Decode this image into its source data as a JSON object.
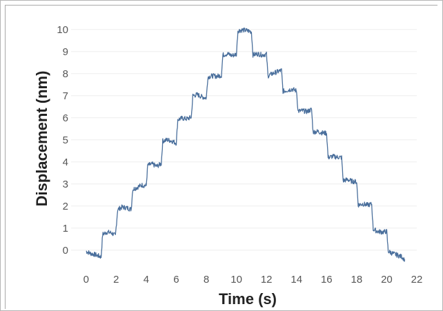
{
  "chart_data": {
    "type": "line",
    "title": "",
    "xlabel": "Time (s)",
    "ylabel": "Displacement (nm)",
    "xlim": [
      -1,
      22
    ],
    "ylim": [
      -0.6,
      10.4
    ],
    "x_ticks": [
      0,
      2,
      4,
      6,
      8,
      10,
      12,
      14,
      16,
      18,
      20,
      22
    ],
    "y_ticks": [
      0,
      1,
      2,
      3,
      4,
      5,
      6,
      7,
      8,
      9,
      10
    ],
    "grid": "horizontal",
    "legend": "none",
    "series": [
      {
        "color": "#4a6f9c",
        "points": [
          [
            0.0,
            -0.05
          ],
          [
            0.3,
            -0.15
          ],
          [
            0.6,
            -0.2
          ],
          [
            0.9,
            -0.28
          ],
          [
            1.0,
            -0.3
          ],
          [
            1.1,
            0.72
          ],
          [
            1.4,
            0.82
          ],
          [
            1.7,
            0.78
          ],
          [
            1.95,
            0.65
          ],
          [
            2.1,
            1.85
          ],
          [
            2.4,
            1.95
          ],
          [
            2.7,
            1.92
          ],
          [
            3.0,
            1.85
          ],
          [
            3.1,
            2.75
          ],
          [
            3.4,
            2.85
          ],
          [
            3.7,
            2.95
          ],
          [
            4.0,
            2.92
          ],
          [
            4.1,
            3.85
          ],
          [
            4.4,
            3.9
          ],
          [
            4.7,
            3.8
          ],
          [
            5.0,
            3.92
          ],
          [
            5.1,
            4.95
          ],
          [
            5.4,
            5.0
          ],
          [
            5.7,
            4.95
          ],
          [
            6.0,
            4.85
          ],
          [
            6.1,
            5.92
          ],
          [
            6.4,
            5.98
          ],
          [
            6.7,
            5.95
          ],
          [
            7.0,
            6.02
          ],
          [
            7.1,
            7.0
          ],
          [
            7.4,
            7.05
          ],
          [
            7.7,
            6.95
          ],
          [
            8.0,
            6.9
          ],
          [
            8.1,
            7.85
          ],
          [
            8.4,
            7.9
          ],
          [
            8.7,
            7.88
          ],
          [
            9.0,
            7.92
          ],
          [
            9.1,
            8.85
          ],
          [
            9.4,
            8.9
          ],
          [
            9.7,
            8.82
          ],
          [
            10.0,
            8.88
          ],
          [
            10.1,
            9.95
          ],
          [
            10.4,
            9.98
          ],
          [
            10.7,
            9.95
          ],
          [
            11.0,
            9.9
          ],
          [
            11.1,
            8.85
          ],
          [
            11.4,
            8.9
          ],
          [
            11.7,
            8.85
          ],
          [
            12.0,
            8.88
          ],
          [
            12.1,
            7.9
          ],
          [
            12.4,
            8.0
          ],
          [
            12.7,
            8.08
          ],
          [
            13.0,
            8.15
          ],
          [
            13.1,
            7.2
          ],
          [
            13.4,
            7.25
          ],
          [
            13.7,
            7.3
          ],
          [
            14.0,
            7.22
          ],
          [
            14.1,
            6.3
          ],
          [
            14.4,
            6.32
          ],
          [
            14.7,
            6.28
          ],
          [
            15.0,
            6.38
          ],
          [
            15.1,
            5.35
          ],
          [
            15.4,
            5.38
          ],
          [
            15.7,
            5.32
          ],
          [
            16.0,
            5.3
          ],
          [
            16.1,
            4.2
          ],
          [
            16.4,
            4.25
          ],
          [
            16.7,
            4.22
          ],
          [
            17.0,
            4.2
          ],
          [
            17.1,
            3.15
          ],
          [
            17.4,
            3.2
          ],
          [
            17.7,
            3.12
          ],
          [
            18.0,
            3.1
          ],
          [
            18.1,
            2.05
          ],
          [
            18.4,
            2.1
          ],
          [
            18.7,
            2.05
          ],
          [
            19.0,
            2.08
          ],
          [
            19.1,
            0.95
          ],
          [
            19.4,
            0.85
          ],
          [
            19.7,
            0.82
          ],
          [
            20.0,
            0.85
          ],
          [
            20.1,
            -0.05
          ],
          [
            20.4,
            -0.15
          ],
          [
            20.7,
            -0.22
          ],
          [
            21.0,
            -0.3
          ],
          [
            21.2,
            -0.42
          ]
        ]
      }
    ]
  }
}
